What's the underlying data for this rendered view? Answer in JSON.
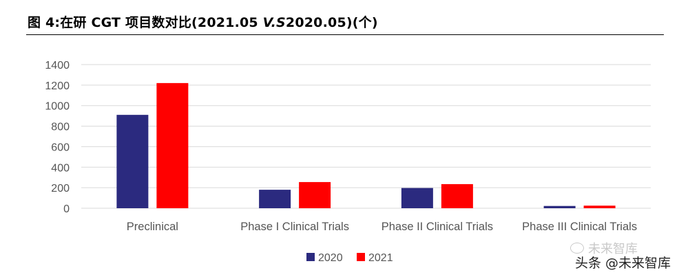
{
  "figure": {
    "title_prefix": "图 4:在研 CGT 项目数对比(2021.05 ",
    "title_vs": "V.S",
    "title_suffix": "2020.05)(个)"
  },
  "chart_data": {
    "type": "bar",
    "categories": [
      "Preclinical",
      "Phase I Clinical Trials",
      "Phase II Clinical Trials",
      "Phase III Clinical Trials"
    ],
    "series": [
      {
        "name": "2020",
        "color": "#2b2a7f",
        "values": [
          910,
          180,
          197,
          22
        ]
      },
      {
        "name": "2021",
        "color": "#ff0000",
        "values": [
          1220,
          255,
          235,
          25
        ]
      }
    ],
    "ylim": [
      0,
      1400
    ],
    "yticks": [
      "0",
      "200",
      "400",
      "600",
      "800",
      "1000",
      "1200",
      "1400"
    ],
    "grid": true,
    "legend_position": "bottom"
  },
  "watermark": {
    "faint_text": "未来智库",
    "text": "头条 @未来智库"
  }
}
